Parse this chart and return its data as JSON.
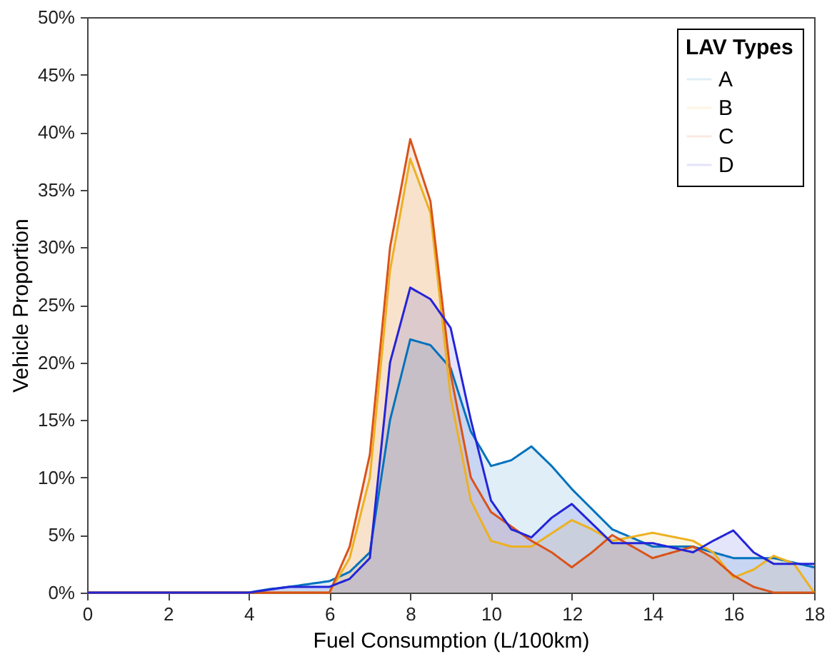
{
  "chart_data": {
    "type": "area",
    "xlabel": "Fuel Consumption (L/100km)",
    "ylabel": "Vehicle Proportion",
    "legend_title": "LAV Types",
    "legend": "top right",
    "grid": false,
    "xlim": [
      0,
      18
    ],
    "xticks": [
      0,
      2,
      4,
      6,
      8,
      10,
      12,
      14,
      16,
      18
    ],
    "ylim": [
      0,
      50
    ],
    "yticks": [
      {
        "value": 0,
        "label": "0%"
      },
      {
        "value": 5,
        "label": "5%"
      },
      {
        "value": 10,
        "label": "10%"
      },
      {
        "value": 15,
        "label": "15%"
      },
      {
        "value": 20,
        "label": "20%"
      },
      {
        "value": 25,
        "label": "25%"
      },
      {
        "value": 30,
        "label": "30%"
      },
      {
        "value": 35,
        "label": "35%"
      },
      {
        "value": 40,
        "label": "40%"
      },
      {
        "value": 45,
        "label": "45%"
      },
      {
        "value": 50,
        "label": "50%"
      }
    ],
    "series": [
      {
        "name": "A",
        "color": "#0072bd",
        "x": [
          0,
          4,
          4.5,
          5,
          6,
          6.5,
          7,
          7.5,
          8,
          8.5,
          9,
          9.5,
          10,
          10.5,
          11,
          11.5,
          12,
          13,
          14,
          15,
          15.5,
          16,
          17,
          18
        ],
        "values": [
          0,
          0,
          0.3,
          0.5,
          1,
          1.8,
          3.5,
          15,
          22,
          21.5,
          19.5,
          14,
          11,
          11.5,
          12.7,
          11,
          9,
          5.5,
          4,
          4,
          3.5,
          3,
          3,
          2.2
        ]
      },
      {
        "name": "B",
        "color": "#edb120",
        "x": [
          0,
          6,
          6.5,
          7,
          7.5,
          8,
          8.5,
          9,
          9.5,
          10,
          10.5,
          11,
          12,
          12.5,
          13,
          14,
          15,
          15.5,
          16,
          16.5,
          17,
          17.5,
          18
        ],
        "values": [
          0,
          0,
          3,
          10,
          28,
          37.7,
          33,
          17,
          8,
          4.5,
          4,
          4,
          6.3,
          5.5,
          4.5,
          5.2,
          4.5,
          3.5,
          1.3,
          2,
          3.2,
          2.5,
          0
        ]
      },
      {
        "name": "C",
        "color": "#d95319",
        "x": [
          0,
          6,
          6.5,
          7,
          7.5,
          8,
          8.5,
          9,
          9.5,
          10,
          11,
          11.5,
          12,
          12.5,
          13,
          13.5,
          14,
          14.5,
          15,
          15.5,
          16,
          16.5,
          17,
          18
        ],
        "values": [
          0,
          0,
          4,
          12,
          30,
          39.4,
          34,
          19,
          10,
          7,
          4.5,
          3.5,
          2.2,
          3.5,
          5,
          4,
          3,
          3.5,
          4,
          3,
          1.5,
          0.5,
          0,
          0
        ]
      },
      {
        "name": "D",
        "color": "#2424d8",
        "x": [
          0,
          4,
          5,
          6,
          6.5,
          7,
          7.5,
          8,
          8.5,
          9,
          9.5,
          10,
          10.5,
          11,
          11.5,
          12,
          12.5,
          13,
          14,
          15,
          15.5,
          16,
          16.5,
          17,
          18
        ],
        "values": [
          0,
          0,
          0.5,
          0.5,
          1.2,
          3,
          20,
          26.5,
          25.5,
          23,
          15,
          8,
          5.5,
          4.8,
          6.5,
          7.7,
          6,
          4.3,
          4.3,
          3.5,
          4.5,
          5.4,
          3.5,
          2.5,
          2.5
        ]
      }
    ]
  }
}
